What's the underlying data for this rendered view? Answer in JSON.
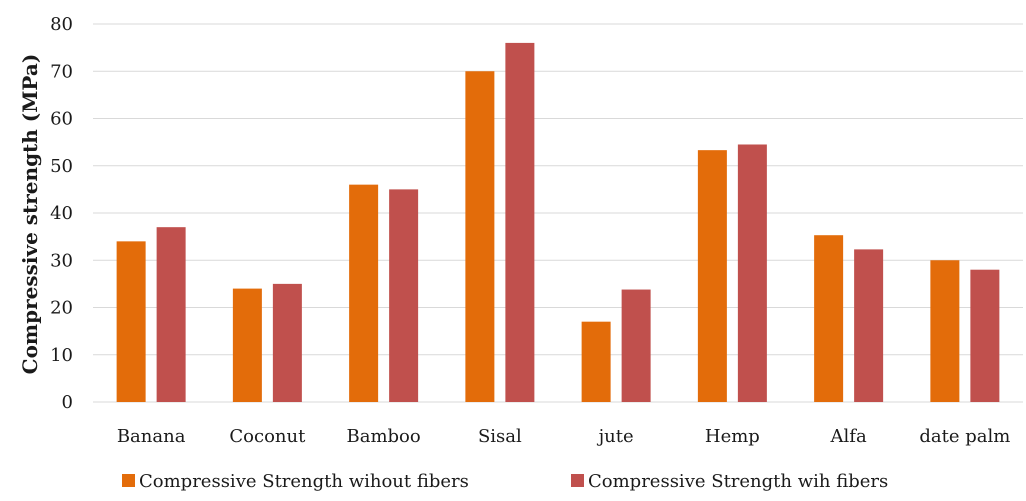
{
  "chart_data": {
    "type": "bar",
    "title": "",
    "xlabel": "",
    "ylabel": "Compressive strength (MPa)",
    "ylim": [
      0,
      80
    ],
    "yticks": [
      0,
      10,
      20,
      30,
      40,
      50,
      60,
      70,
      80
    ],
    "grid": true,
    "legend_position": "bottom",
    "categories": [
      "Banana",
      "Coconut",
      "Bamboo",
      "Sisal",
      "jute",
      "Hemp",
      "Alfa",
      "date palm"
    ],
    "series": [
      {
        "name": "Compressive Strength wihout fibers",
        "color": "#e36c0a",
        "values": [
          34,
          24,
          46,
          70,
          17,
          53.3,
          35.3,
          30
        ]
      },
      {
        "name": "Compressive Strength wih fibers",
        "color": "#c0504d",
        "values": [
          37,
          25,
          45,
          76,
          23.8,
          54.5,
          32.3,
          28
        ]
      }
    ]
  }
}
